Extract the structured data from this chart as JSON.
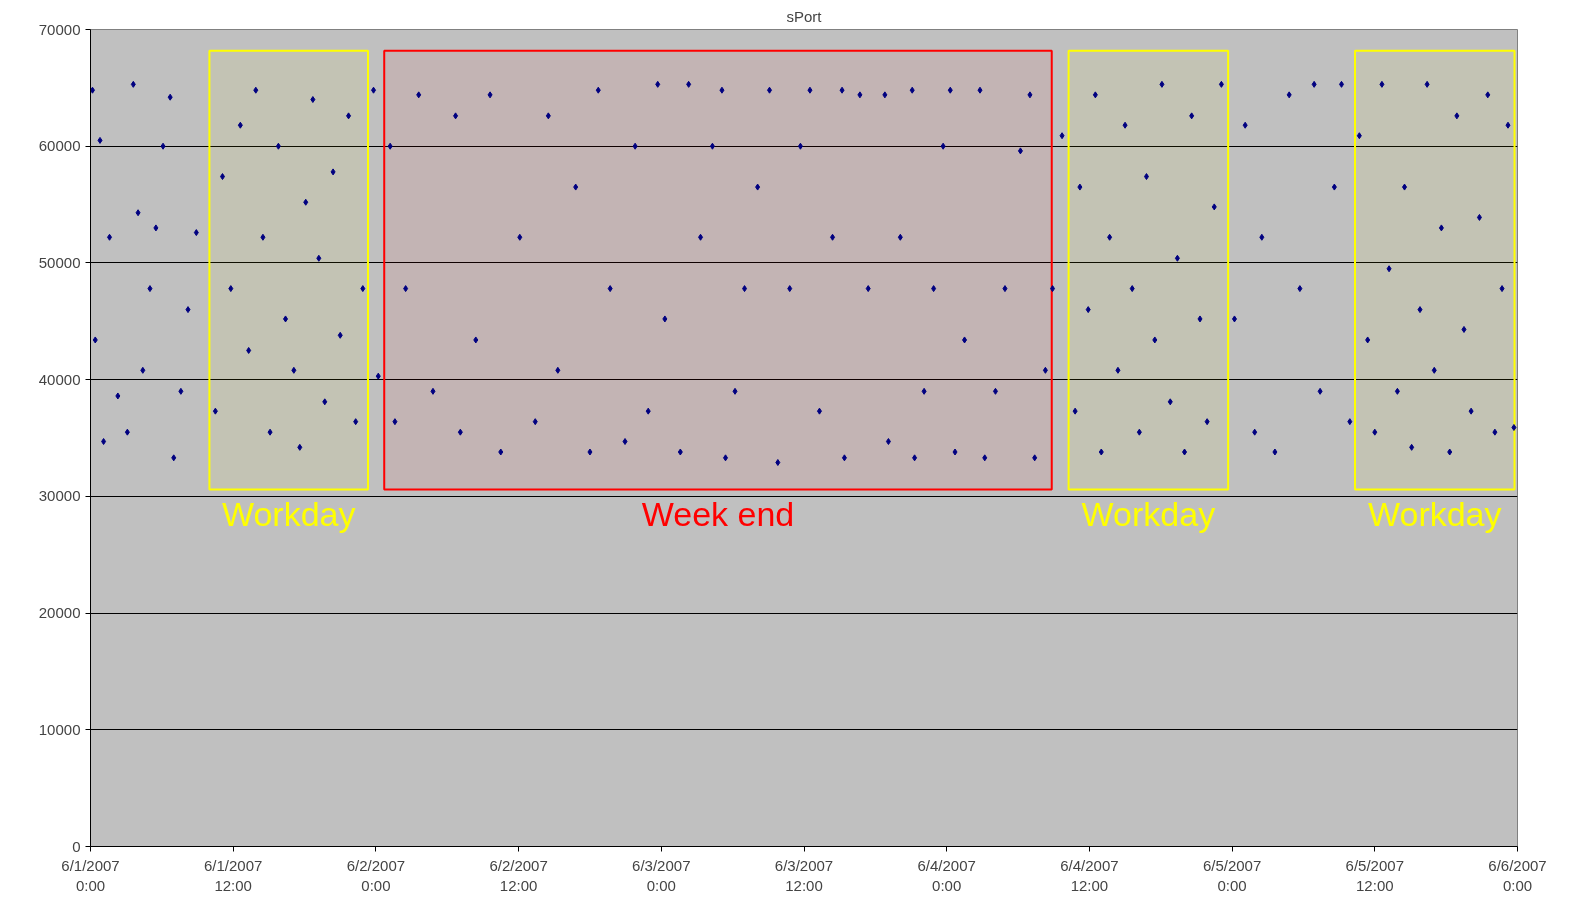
{
  "chart_data": {
    "type": "scatter",
    "title": "sPort",
    "xlim": [
      "2007-06-01T00:00",
      "2007-06-06T00:00"
    ],
    "xticks": [
      {
        "value": "2007-06-01T00:00",
        "label": "6/1/2007\n0:00"
      },
      {
        "value": "2007-06-01T12:00",
        "label": "6/1/2007\n12:00"
      },
      {
        "value": "2007-06-02T00:00",
        "label": "6/2/2007\n0:00"
      },
      {
        "value": "2007-06-02T12:00",
        "label": "6/2/2007\n12:00"
      },
      {
        "value": "2007-06-03T00:00",
        "label": "6/3/2007\n0:00"
      },
      {
        "value": "2007-06-03T12:00",
        "label": "6/3/2007\n12:00"
      },
      {
        "value": "2007-06-04T00:00",
        "label": "6/4/2007\n0:00"
      },
      {
        "value": "2007-06-04T12:00",
        "label": "6/4/2007\n12:00"
      },
      {
        "value": "2007-06-05T00:00",
        "label": "6/5/2007\n0:00"
      },
      {
        "value": "2007-06-05T12:00",
        "label": "6/5/2007\n12:00"
      },
      {
        "value": "2007-06-06T00:00",
        "label": "6/6/2007\n0:00"
      }
    ],
    "ylim": [
      0,
      70000
    ],
    "yticks": [
      0,
      10000,
      20000,
      30000,
      40000,
      50000,
      60000,
      70000
    ],
    "grid": "y",
    "marker": "diamond",
    "bands": [
      {
        "axis": "x",
        "from": "2007-06-01T10:00",
        "to": "2007-06-01T23:20",
        "label": "Workday",
        "color": "#ffff00"
      },
      {
        "axis": "x",
        "from": "2007-06-02T00:42",
        "to": "2007-06-04T08:50",
        "label": "Week end",
        "color": "#ff0000"
      },
      {
        "axis": "x",
        "from": "2007-06-04T10:15",
        "to": "2007-06-04T23:40",
        "label": "Workday",
        "color": "#ffff00"
      },
      {
        "axis": "x",
        "from": "2007-06-05T10:20",
        "to": "2007-06-05T23:45",
        "label": "Workday",
        "color": "#ffff00"
      }
    ],
    "series": [
      {
        "color": "#000080",
        "x": [
          "2007-06-01T00:10",
          "2007-06-01T00:24",
          "2007-06-01T00:48",
          "2007-06-01T01:06",
          "2007-06-01T01:36",
          "2007-06-01T02:18",
          "2007-06-01T03:06",
          "2007-06-01T03:36",
          "2007-06-01T04:00",
          "2007-06-01T04:24",
          "2007-06-01T05:00",
          "2007-06-01T05:30",
          "2007-06-01T06:06",
          "2007-06-01T06:42",
          "2007-06-01T07:00",
          "2007-06-01T07:36",
          "2007-06-01T08:12",
          "2007-06-01T08:54",
          "2007-06-01T10:30",
          "2007-06-01T11:06",
          "2007-06-01T11:48",
          "2007-06-01T12:36",
          "2007-06-01T13:18",
          "2007-06-01T13:54",
          "2007-06-01T14:30",
          "2007-06-01T15:06",
          "2007-06-01T15:48",
          "2007-06-01T16:24",
          "2007-06-01T17:06",
          "2007-06-01T17:36",
          "2007-06-01T18:06",
          "2007-06-01T18:42",
          "2007-06-01T19:12",
          "2007-06-01T19:42",
          "2007-06-01T20:24",
          "2007-06-01T21:00",
          "2007-06-01T21:42",
          "2007-06-01T22:18",
          "2007-06-01T22:54",
          "2007-06-01T23:48",
          "2007-06-02T00:12",
          "2007-06-02T01:12",
          "2007-06-02T01:36",
          "2007-06-02T02:30",
          "2007-06-02T03:36",
          "2007-06-02T04:48",
          "2007-06-02T06:42",
          "2007-06-02T07:06",
          "2007-06-02T08:24",
          "2007-06-02T09:36",
          "2007-06-02T10:30",
          "2007-06-02T12:06",
          "2007-06-02T13:24",
          "2007-06-02T14:30",
          "2007-06-02T15:18",
          "2007-06-02T16:48",
          "2007-06-02T18:00",
          "2007-06-02T18:42",
          "2007-06-02T19:42",
          "2007-06-02T20:57",
          "2007-06-02T21:48",
          "2007-06-02T22:54",
          "2007-06-02T23:42",
          "2007-06-03T00:18",
          "2007-06-03T01:36",
          "2007-06-03T02:18",
          "2007-06-03T03:18",
          "2007-06-03T04:18",
          "2007-06-03T05:06",
          "2007-06-03T05:24",
          "2007-06-03T06:12",
          "2007-06-03T07:00",
          "2007-06-03T08:06",
          "2007-06-03T09:06",
          "2007-06-03T09:48",
          "2007-06-03T10:48",
          "2007-06-03T11:42",
          "2007-06-03T12:30",
          "2007-06-03T13:18",
          "2007-06-03T14:24",
          "2007-06-03T15:12",
          "2007-06-03T15:24",
          "2007-06-03T16:42",
          "2007-06-03T17:24",
          "2007-06-03T18:48",
          "2007-06-03T19:06",
          "2007-06-03T20:06",
          "2007-06-03T21:06",
          "2007-06-03T21:18",
          "2007-06-03T22:06",
          "2007-06-03T22:54",
          "2007-06-03T23:42",
          "2007-06-04T00:18",
          "2007-06-04T00:42",
          "2007-06-04T01:30",
          "2007-06-04T02:48",
          "2007-06-04T03:12",
          "2007-06-04T04:06",
          "2007-06-04T04:54",
          "2007-06-04T06:12",
          "2007-06-04T07:00",
          "2007-06-04T07:24",
          "2007-06-04T08:18",
          "2007-06-04T08:54",
          "2007-06-04T09:42",
          "2007-06-04T10:48",
          "2007-06-04T11:12",
          "2007-06-04T11:54",
          "2007-06-04T12:30",
          "2007-06-04T13:00",
          "2007-06-04T13:42",
          "2007-06-04T14:24",
          "2007-06-04T15:00",
          "2007-06-04T15:36",
          "2007-06-04T16:12",
          "2007-06-04T16:48",
          "2007-06-04T17:30",
          "2007-06-04T18:06",
          "2007-06-04T18:48",
          "2007-06-04T19:24",
          "2007-06-04T20:00",
          "2007-06-04T20:36",
          "2007-06-04T21:18",
          "2007-06-04T21:54",
          "2007-06-04T22:30",
          "2007-06-04T23:06",
          "2007-06-05T00:12",
          "2007-06-05T01:06",
          "2007-06-05T01:54",
          "2007-06-05T02:30",
          "2007-06-05T03:36",
          "2007-06-05T04:48",
          "2007-06-05T05:42",
          "2007-06-05T06:54",
          "2007-06-05T07:24",
          "2007-06-05T08:36",
          "2007-06-05T09:12",
          "2007-06-05T09:54",
          "2007-06-05T10:42",
          "2007-06-05T11:24",
          "2007-06-05T12:00",
          "2007-06-05T12:36",
          "2007-06-05T13:12",
          "2007-06-05T13:54",
          "2007-06-05T14:30",
          "2007-06-05T15:06",
          "2007-06-05T15:48",
          "2007-06-05T16:24",
          "2007-06-05T17:00",
          "2007-06-05T17:36",
          "2007-06-05T18:18",
          "2007-06-05T18:54",
          "2007-06-05T19:30",
          "2007-06-05T20:06",
          "2007-06-05T20:48",
          "2007-06-05T21:30",
          "2007-06-05T22:06",
          "2007-06-05T22:42",
          "2007-06-05T23:12",
          "2007-06-05T23:42"
        ],
        "values": [
          64800,
          43400,
          60500,
          34700,
          52200,
          38600,
          35500,
          65300,
          54300,
          40800,
          47800,
          53000,
          60000,
          64200,
          33300,
          39000,
          46000,
          52600,
          37300,
          57400,
          47800,
          61800,
          42500,
          64800,
          52200,
          35500,
          60000,
          45200,
          40800,
          34200,
          55200,
          64000,
          50400,
          38100,
          57800,
          43800,
          62600,
          36400,
          47800,
          64800,
          40300,
          60000,
          36400,
          47800,
          64400,
          39000,
          62600,
          35500,
          43400,
          64400,
          33800,
          52200,
          36400,
          62600,
          40800,
          56500,
          33800,
          64800,
          47800,
          34700,
          60000,
          37300,
          65300,
          45200,
          33800,
          65300,
          52200,
          60000,
          64800,
          33300,
          39000,
          47800,
          56500,
          64800,
          32900,
          47800,
          60000,
          64800,
          37300,
          52200,
          64800,
          33300,
          64400,
          47800,
          64400,
          34700,
          52200,
          64800,
          33300,
          39000,
          47800,
          60000,
          64800,
          33800,
          43400,
          64800,
          33300,
          39000,
          47800,
          59600,
          64400,
          33300,
          40800,
          47800,
          60900,
          37300,
          56500,
          46000,
          64400,
          33800,
          52200,
          40800,
          61800,
          47800,
          35500,
          57400,
          43400,
          65300,
          38100,
          50400,
          33800,
          62600,
          45200,
          36400,
          54800,
          65300,
          45200,
          61800,
          35500,
          52200,
          33800,
          64400,
          47800,
          65300,
          39000,
          56500,
          65300,
          36400,
          60900,
          43400,
          35500,
          65300,
          49500,
          39000,
          56500,
          34200,
          46000,
          65300,
          40800,
          53000,
          33800,
          62600,
          44300,
          37300,
          53900,
          64400,
          35500,
          47800,
          61800,
          35900
        ]
      }
    ]
  }
}
